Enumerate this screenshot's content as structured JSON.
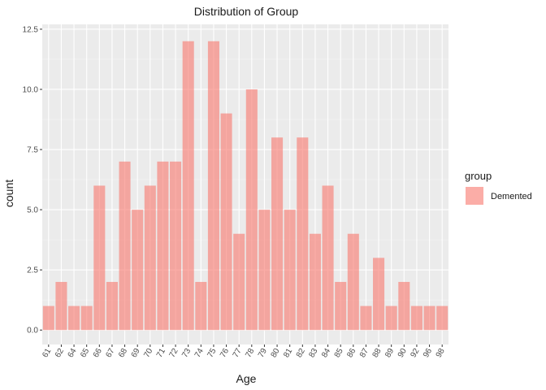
{
  "chart_data": {
    "type": "bar",
    "title": "Distribution of Group",
    "xlabel": "Age",
    "ylabel": "count",
    "categories": [
      "61",
      "62",
      "64",
      "65",
      "66",
      "67",
      "68",
      "69",
      "70",
      "71",
      "72",
      "73",
      "74",
      "75",
      "76",
      "77",
      "78",
      "79",
      "80",
      "81",
      "82",
      "83",
      "84",
      "85",
      "86",
      "87",
      "88",
      "89",
      "90",
      "92",
      "96",
      "98"
    ],
    "series": [
      {
        "name": "Demented",
        "values": [
          1,
          2,
          1,
          1,
          6,
          2,
          7,
          5,
          6,
          7,
          7,
          12,
          2,
          12,
          9,
          4,
          10,
          5,
          8,
          5,
          8,
          4,
          6,
          2,
          4,
          1,
          3,
          1,
          2,
          1,
          1,
          1
        ]
      }
    ],
    "ylim": [
      -0.6,
      12.7
    ],
    "y_ticks": [
      0,
      2.5,
      5,
      7.5,
      10,
      12.5
    ],
    "y_tick_labels": [
      "0.0",
      "2.5",
      "5.0",
      "7.5",
      "10.0",
      "12.5"
    ],
    "grid": true,
    "legend": {
      "title": "group",
      "position": "right"
    },
    "colors": {
      "bar": "#F8766D",
      "panel": "#EBEBEB",
      "grid_major": "#FFFFFF",
      "grid_minor": "#F5F5F5"
    }
  }
}
